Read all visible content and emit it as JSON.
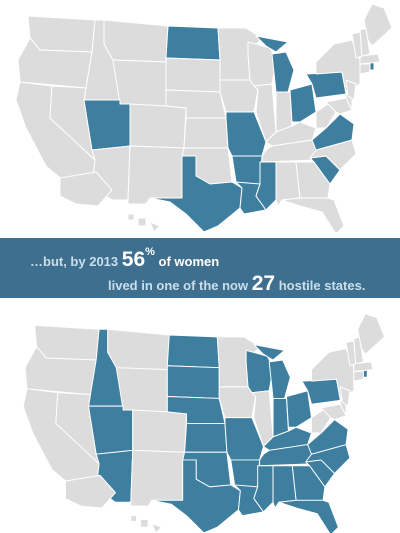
{
  "colors": {
    "hostile": "#3e7fa0",
    "other": "#dcdcdc",
    "border": "#ffffff",
    "banner": "#3e6f8f"
  },
  "banner": {
    "lead": "…but, by 2013",
    "percent": "56",
    "percent_sign": "%",
    "of_women": "of women",
    "lived_in": "lived in one of the now",
    "count": "27",
    "hostile_states": "hostile states."
  },
  "maps": {
    "before": {
      "hostile": [
        "UT",
        "ND",
        "MO",
        "AR",
        "TX",
        "LA",
        "MS",
        "OH",
        "PA",
        "VA",
        "SC",
        "MI",
        "RI"
      ]
    },
    "after": {
      "hostile": [
        "ID",
        "UT",
        "AZ",
        "ND",
        "SD",
        "NE",
        "KS",
        "OK",
        "TX",
        "MO",
        "AR",
        "LA",
        "WI",
        "MI",
        "IN",
        "OH",
        "KY",
        "TN",
        "MS",
        "AL",
        "GA",
        "FL",
        "SC",
        "NC",
        "VA",
        "PA",
        "RI"
      ]
    }
  }
}
